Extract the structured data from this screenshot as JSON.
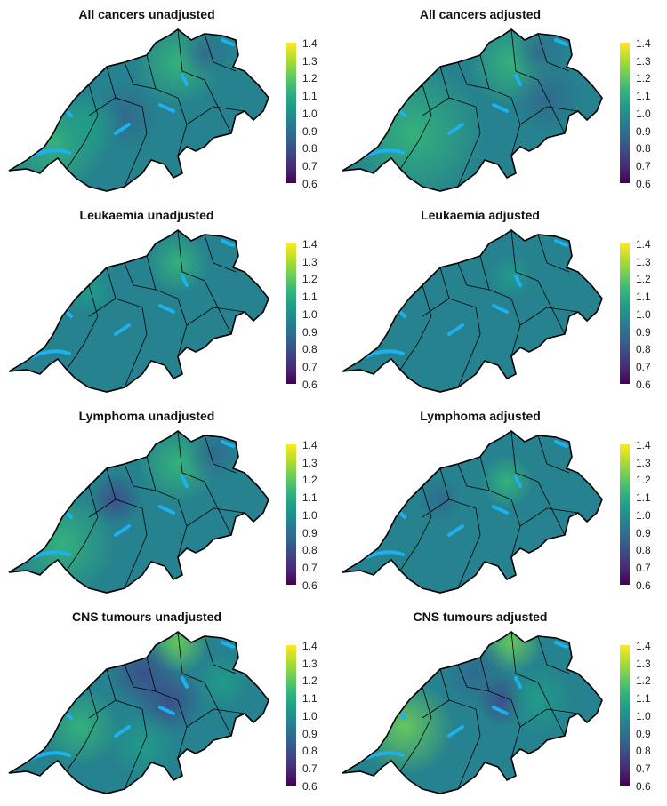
{
  "panels": [
    {
      "title": "All cancers unadjusted"
    },
    {
      "title": "All cancers adjusted"
    },
    {
      "title": "Leukaemia unadjusted"
    },
    {
      "title": "Leukaemia adjusted"
    },
    {
      "title": "Lymphoma unadjusted"
    },
    {
      "title": "Lymphoma adjusted"
    },
    {
      "title": "CNS tumours unadjusted"
    },
    {
      "title": "CNS tumours adjusted"
    }
  ],
  "colorbar": {
    "ticks": [
      "1.4",
      "1.3",
      "1.2",
      "1.1",
      "1.0",
      "0.9",
      "0.8",
      "0.7",
      "0.6"
    ],
    "range": [
      0.6,
      1.4
    ],
    "colors": [
      "#fde725",
      "#b5de2b",
      "#6ece58",
      "#35b779",
      "#1f9e89",
      "#26828e",
      "#31688e",
      "#3e4989",
      "#482878",
      "#440154"
    ]
  },
  "lake_color": "#1fb0f0",
  "border_color": "#000000"
}
